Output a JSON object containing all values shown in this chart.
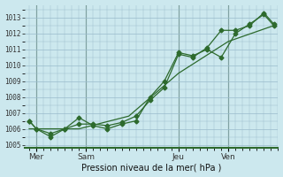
{
  "background_color": "#cce8ee",
  "grid_color": "#99bbcc",
  "line_color": "#2d6a2d",
  "xlabel": "Pression niveau de la mer( hPa )",
  "ylim": [
    1004.8,
    1013.8
  ],
  "yticks": [
    1005,
    1006,
    1007,
    1008,
    1009,
    1010,
    1011,
    1012,
    1013
  ],
  "day_labels": [
    "Mer",
    "Sam",
    "Jeu",
    "Ven"
  ],
  "day_positions": [
    0.5,
    4.0,
    10.5,
    14.0
  ],
  "series1_x": [
    0.0,
    0.5,
    1.5,
    2.5,
    3.5,
    4.5,
    5.5,
    6.5,
    7.5,
    8.5,
    9.5,
    10.5,
    11.5,
    12.5,
    13.5,
    14.5,
    15.5,
    16.5,
    17.2
  ],
  "series1_y": [
    1006.5,
    1006.0,
    1005.7,
    1006.0,
    1006.3,
    1006.3,
    1006.2,
    1006.4,
    1006.8,
    1007.8,
    1008.6,
    1010.7,
    1010.5,
    1011.1,
    1012.2,
    1012.2,
    1012.5,
    1013.3,
    1012.6
  ],
  "series2_x": [
    0.0,
    0.5,
    1.5,
    2.5,
    3.5,
    4.5,
    5.5,
    6.5,
    7.5,
    8.5,
    9.5,
    10.5,
    11.5,
    12.5,
    13.5,
    14.5,
    15.5,
    16.5,
    17.2
  ],
  "series2_y": [
    1006.5,
    1006.0,
    1005.5,
    1006.0,
    1006.7,
    1006.2,
    1006.0,
    1006.3,
    1006.5,
    1008.0,
    1009.0,
    1010.8,
    1010.6,
    1011.0,
    1010.5,
    1012.0,
    1012.6,
    1013.2,
    1012.5
  ],
  "series3_x": [
    0.0,
    3.5,
    7.0,
    10.5,
    14.0,
    17.2
  ],
  "series3_y": [
    1006.0,
    1006.0,
    1006.8,
    1009.5,
    1011.5,
    1012.5
  ]
}
